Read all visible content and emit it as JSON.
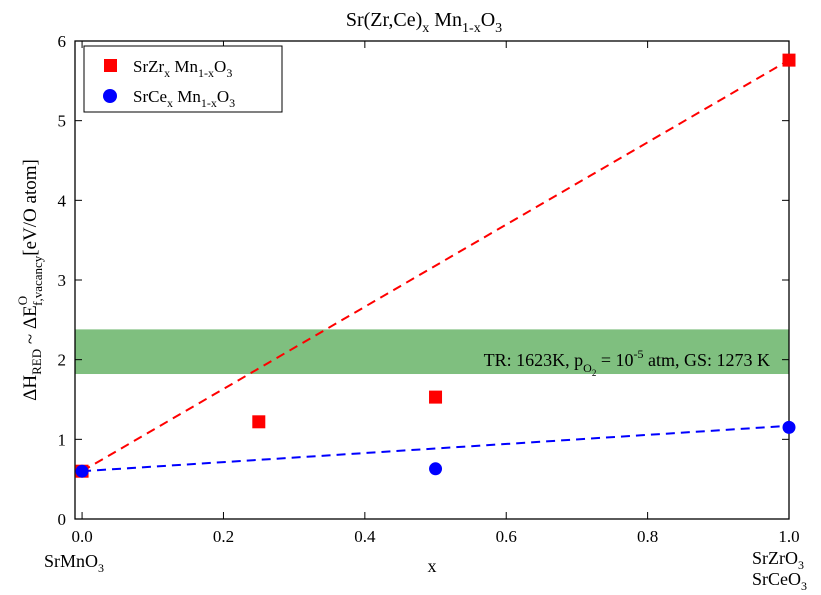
{
  "chart_data": {
    "type": "scatter",
    "title": {
      "base": "Sr(Zr,Ce)",
      "sub1": "x",
      "mid": " Mn",
      "sub2": "1-x",
      "end": "O",
      "sub3": "3"
    },
    "xlabel": "x",
    "ylabel": {
      "a": "ΔH",
      "a_sub": "RED",
      "b": " ~ ΔE",
      "b_sup": "O",
      "b_sub": "f,vacancy",
      "c": "[eV/O atom]"
    },
    "xlim": [
      -0.01,
      1.0
    ],
    "ylim": [
      0,
      6
    ],
    "xticks": [
      "0.0",
      "0.2",
      "0.4",
      "0.6",
      "0.8",
      "1.0"
    ],
    "yticks": [
      "0",
      "1",
      "2",
      "3",
      "4",
      "5",
      "6"
    ],
    "grid": false,
    "legend_position": "top-left",
    "series": [
      {
        "name": {
          "a": "SrZr",
          "a_sub": "x",
          "b": " Mn",
          "b_sub": "1-x",
          "c": "O",
          "c_sub": "3"
        },
        "marker": "square",
        "color": "#ff0000",
        "x": [
          0.0,
          0.25,
          0.5,
          1.0
        ],
        "y": [
          0.6,
          1.22,
          1.53,
          5.76
        ],
        "fit_line": {
          "x": [
            0.0,
            1.0
          ],
          "y": [
            0.6,
            5.76
          ],
          "style": "dashed"
        }
      },
      {
        "name": {
          "a": "SrCe",
          "a_sub": "x",
          "b": " Mn",
          "b_sub": "1-x",
          "c": "O",
          "c_sub": "3"
        },
        "marker": "circle",
        "color": "#0000ff",
        "x": [
          0.0,
          0.5,
          1.0
        ],
        "y": [
          0.6,
          0.63,
          1.15
        ],
        "fit_line": {
          "x": [
            0.0,
            1.0
          ],
          "y": [
            0.6,
            1.17
          ],
          "style": "dashed"
        }
      }
    ],
    "band": {
      "y_range": [
        1.82,
        2.38
      ],
      "color": "#7fbf7f",
      "label": {
        "a": "TR: 1623K, p",
        "sub": "O",
        "subsub": "2",
        "b": " = 10",
        "sup": "-5",
        "c": " atm, GS: 1273 K"
      },
      "label_color": "#007700"
    },
    "endpoint_labels": {
      "left": {
        "text": "SrMnO",
        "sub": "3",
        "color": "#000000"
      },
      "right_top": {
        "text": "SrZrO",
        "sub": "3",
        "color": "#ff0000"
      },
      "right_bottom": {
        "text": "SrCeO",
        "sub": "3",
        "color": "#0000ff"
      }
    }
  }
}
